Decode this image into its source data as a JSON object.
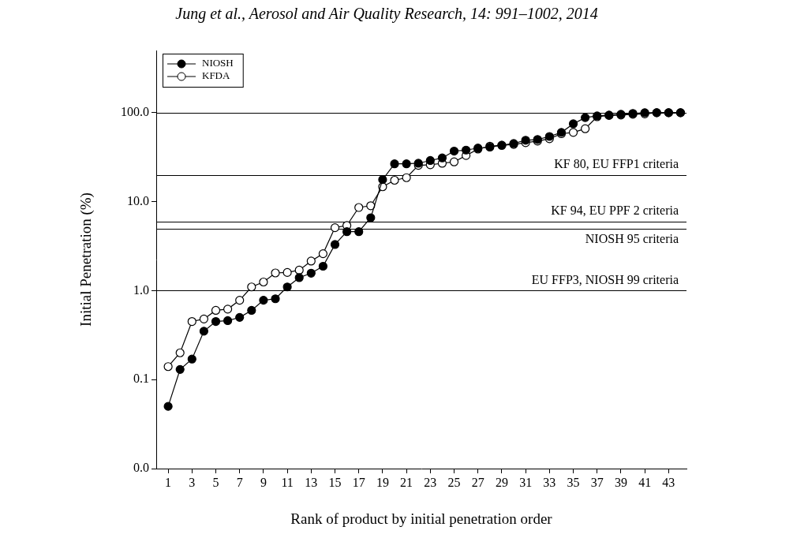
{
  "chart_data": {
    "type": "line",
    "title": "Jung et al., Aerosol and Air Quality Research, 14: 991–1002, 2014",
    "x_label": "Rank of product by initial penetration order",
    "y_label": "Initial Penetration (%)",
    "x": [
      1,
      2,
      3,
      4,
      5,
      6,
      7,
      8,
      9,
      10,
      11,
      12,
      13,
      14,
      15,
      16,
      17,
      18,
      19,
      20,
      21,
      22,
      23,
      24,
      25,
      26,
      27,
      28,
      29,
      30,
      31,
      32,
      33,
      34,
      35,
      36,
      37,
      38,
      39,
      40,
      41,
      42,
      43,
      44
    ],
    "series": [
      {
        "name": "NIOSH",
        "color": "#000000",
        "marker": "circle",
        "line_style": "solid",
        "values": [
          0.05,
          0.13,
          0.17,
          0.35,
          0.45,
          0.46,
          0.5,
          0.6,
          0.78,
          0.81,
          1.1,
          1.4,
          1.57,
          1.88,
          3.3,
          4.6,
          4.6,
          6.6,
          17.7,
          26.6,
          26.6,
          27,
          29,
          31,
          37,
          38,
          40,
          41,
          43,
          45,
          49,
          50,
          54,
          60,
          75,
          88,
          92,
          94,
          96,
          98,
          100,
          100,
          100,
          100
        ]
      },
      {
        "name": "KFDA",
        "color": "#000000",
        "marker": "open_circle",
        "line_style": "solid",
        "values": [
          0.14,
          0.2,
          0.45,
          0.48,
          0.6,
          0.62,
          0.78,
          1.1,
          1.25,
          1.58,
          1.6,
          1.7,
          2.15,
          2.6,
          5.1,
          5.4,
          8.6,
          9.0,
          14.7,
          17.4,
          18.6,
          25.6,
          26,
          27,
          28,
          33,
          39,
          42,
          43,
          44,
          46,
          48,
          51,
          58,
          60,
          66,
          90,
          93,
          94,
          96,
          97,
          100,
          100,
          100
        ]
      }
    ],
    "xlim": [
      0,
      44.5
    ],
    "xticks": [
      1,
      3,
      5,
      7,
      9,
      11,
      13,
      15,
      17,
      19,
      21,
      23,
      25,
      27,
      29,
      31,
      33,
      35,
      37,
      39,
      41,
      43
    ],
    "ylim": [
      0.01,
      500
    ],
    "yticks": [
      {
        "value": 0.01,
        "label": "0.0"
      },
      0.1,
      {
        "value": 1,
        "label": "1.0"
      },
      {
        "value": 10,
        "label": "10.0"
      },
      {
        "value": 100,
        "label": "100.0"
      }
    ],
    "log": "y",
    "grid": false,
    "legend": "upper left",
    "annotations": [
      {
        "y": 100
      },
      {
        "y": 20,
        "label": "KF 80, EU FFP1 criteria"
      },
      {
        "y": 6,
        "label": "KF 94, EU PPF 2 criteria"
      },
      {
        "y": 5,
        "label": "NIOSH 95 criteria"
      },
      {
        "y": 1,
        "label": "EU FFP3, NIOSH 99 criteria"
      }
    ]
  }
}
